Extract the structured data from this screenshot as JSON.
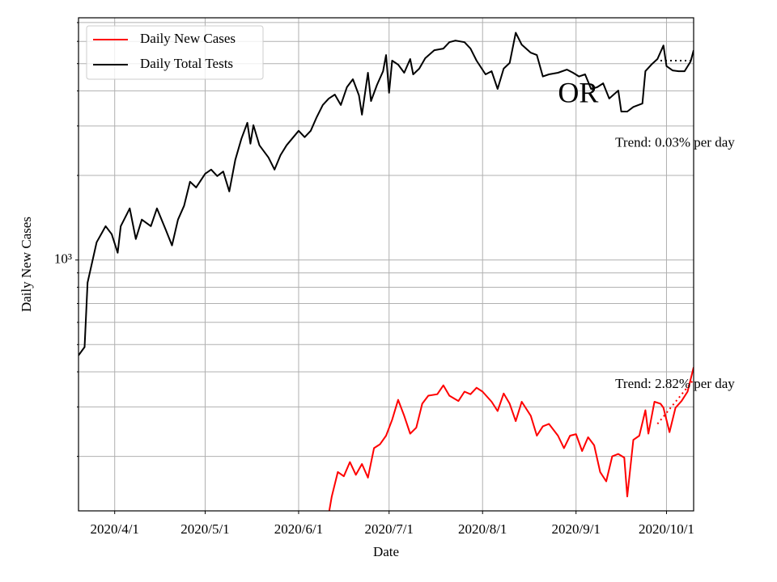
{
  "chart_data": {
    "type": "line",
    "xlabel": "Date",
    "ylabel": "Daily New Cases",
    "log_scale_y": true,
    "grid": true,
    "legend": "upper left",
    "xlim": [
      "2020-03-20",
      "2020-10-10"
    ],
    "xticks": [
      {
        "value": "2020-04-01",
        "label": "2020/4/1"
      },
      {
        "value": "2020-05-01",
        "label": "2020/5/1"
      },
      {
        "value": "2020-06-01",
        "label": "2020/6/1"
      },
      {
        "value": "2020-07-01",
        "label": "2020/7/1"
      },
      {
        "value": "2020-08-01",
        "label": "2020/8/1"
      },
      {
        "value": "2020-09-01",
        "label": "2020/9/1"
      },
      {
        "value": "2020-10-01",
        "label": "2020/10/1"
      }
    ],
    "ylim": [
      128,
      7280
    ],
    "yticks": [
      {
        "value": 1000,
        "label": "10³"
      }
    ],
    "minor_yticks": [
      200,
      300,
      400,
      500,
      600,
      700,
      800,
      900,
      2000,
      3000,
      4000,
      5000,
      6000,
      7000
    ],
    "series": [
      {
        "name": "Daily New Cases",
        "color": "#ff0000",
        "x": [
          "2020-06-11",
          "2020-06-12",
          "2020-06-14",
          "2020-06-16",
          "2020-06-18",
          "2020-06-20",
          "2020-06-22",
          "2020-06-24",
          "2020-06-26",
          "2020-06-28",
          "2020-06-30",
          "2020-07-02",
          "2020-07-04",
          "2020-07-06",
          "2020-07-08",
          "2020-07-10",
          "2020-07-12",
          "2020-07-14",
          "2020-07-17",
          "2020-07-19",
          "2020-07-21",
          "2020-07-24",
          "2020-07-26",
          "2020-07-28",
          "2020-07-30",
          "2020-08-01",
          "2020-08-04",
          "2020-08-06",
          "2020-08-08",
          "2020-08-10",
          "2020-08-12",
          "2020-08-14",
          "2020-08-17",
          "2020-08-19",
          "2020-08-21",
          "2020-08-23",
          "2020-08-26",
          "2020-08-28",
          "2020-08-30",
          "2020-09-01",
          "2020-09-03",
          "2020-09-05",
          "2020-09-07",
          "2020-09-09",
          "2020-09-11",
          "2020-09-13",
          "2020-09-15",
          "2020-09-17",
          "2020-09-18",
          "2020-09-20",
          "2020-09-22",
          "2020-09-24",
          "2020-09-25",
          "2020-09-27",
          "2020-09-29",
          "2020-09-30",
          "2020-10-02",
          "2020-10-04",
          "2020-10-06",
          "2020-10-08",
          "2020-10-10"
        ],
        "values": [
          125,
          144,
          176,
          170,
          191,
          172,
          188,
          168,
          214,
          221,
          237,
          270,
          318,
          279,
          241,
          253,
          308,
          329,
          333,
          358,
          329,
          315,
          340,
          333,
          351,
          340,
          313,
          290,
          335,
          308,
          267,
          313,
          279,
          237,
          256,
          261,
          237,
          214,
          237,
          240,
          209,
          234,
          219,
          176,
          163,
          200,
          204,
          198,
          144,
          229,
          237,
          292,
          241,
          313,
          308,
          298,
          244,
          298,
          315,
          340,
          415
        ]
      },
      {
        "name": "Daily Total Tests",
        "color": "#000000",
        "x": [
          "2020-03-20",
          "2020-03-22",
          "2020-03-23",
          "2020-03-26",
          "2020-03-29",
          "2020-03-31",
          "2020-04-02",
          "2020-04-03",
          "2020-04-06",
          "2020-04-08",
          "2020-04-10",
          "2020-04-13",
          "2020-04-15",
          "2020-04-18",
          "2020-04-20",
          "2020-04-22",
          "2020-04-24",
          "2020-04-26",
          "2020-04-28",
          "2020-05-01",
          "2020-05-03",
          "2020-05-05",
          "2020-05-07",
          "2020-05-09",
          "2020-05-11",
          "2020-05-13",
          "2020-05-15",
          "2020-05-16",
          "2020-05-17",
          "2020-05-19",
          "2020-05-22",
          "2020-05-24",
          "2020-05-26",
          "2020-05-28",
          "2020-06-01",
          "2020-06-03",
          "2020-06-05",
          "2020-06-07",
          "2020-06-09",
          "2020-06-11",
          "2020-06-13",
          "2020-06-15",
          "2020-06-17",
          "2020-06-19",
          "2020-06-21",
          "2020-06-22",
          "2020-06-24",
          "2020-06-25",
          "2020-06-27",
          "2020-06-29",
          "2020-06-30",
          "2020-07-01",
          "2020-07-02",
          "2020-07-04",
          "2020-07-06",
          "2020-07-08",
          "2020-07-09",
          "2020-07-11",
          "2020-07-13",
          "2020-07-16",
          "2020-07-19",
          "2020-07-21",
          "2020-07-23",
          "2020-07-26",
          "2020-07-28",
          "2020-07-30",
          "2020-08-02",
          "2020-08-04",
          "2020-08-06",
          "2020-08-08",
          "2020-08-10",
          "2020-08-12",
          "2020-08-14",
          "2020-08-17",
          "2020-08-19",
          "2020-08-21",
          "2020-08-23",
          "2020-08-26",
          "2020-08-29",
          "2020-08-31",
          "2020-09-02",
          "2020-09-04",
          "2020-09-06",
          "2020-09-08",
          "2020-09-10",
          "2020-09-12",
          "2020-09-15",
          "2020-09-16",
          "2020-09-18",
          "2020-09-20",
          "2020-09-23",
          "2020-09-24",
          "2020-09-26",
          "2020-09-28",
          "2020-09-30",
          "2020-10-01",
          "2020-10-03",
          "2020-10-05",
          "2020-10-07",
          "2020-10-09",
          "2020-10-10"
        ],
        "values": [
          458,
          490,
          831,
          1157,
          1320,
          1236,
          1061,
          1320,
          1527,
          1188,
          1392,
          1320,
          1527,
          1277,
          1127,
          1392,
          1558,
          1900,
          1813,
          2028,
          2098,
          1990,
          2065,
          1755,
          2272,
          2699,
          3080,
          2595,
          3018,
          2561,
          2317,
          2098,
          2362,
          2561,
          2884,
          2737,
          2884,
          3226,
          3563,
          3755,
          3880,
          3563,
          4120,
          4400,
          3855,
          3290,
          4640,
          3680,
          4200,
          4700,
          5364,
          3938,
          5125,
          4961,
          4640,
          5192,
          4580,
          4800,
          5227,
          5580,
          5655,
          5960,
          6040,
          5960,
          5655,
          5125,
          4580,
          4700,
          4065,
          4800,
          5028,
          6440,
          5840,
          5470,
          5364,
          4500,
          4580,
          4640,
          4760,
          4640,
          4500,
          4580,
          4065,
          4120,
          4255,
          3755,
          4010,
          3375,
          3375,
          3506,
          3606,
          4700,
          4961,
          5192,
          5800,
          4900,
          4730,
          4700,
          4700,
          5090,
          5580
        ]
      }
    ],
    "trend_lines": [
      {
        "color": "#000000",
        "x": [
          "2020-09-29",
          "2020-10-10"
        ],
        "values": [
          5125,
          5125
        ]
      },
      {
        "color": "#ff0000",
        "x": [
          "2020-09-28",
          "2020-10-10"
        ],
        "values": [
          261,
          375
        ]
      }
    ],
    "annotations": [
      {
        "text": "Trend: 0.03% per day",
        "x": "2020-09-14",
        "value": 2600
      },
      {
        "text": "Trend: 2.82% per day",
        "x": "2020-09-14",
        "value": 360
      },
      {
        "text": "OR",
        "x": "2020-08-26",
        "value": 3850,
        "big": true
      }
    ]
  }
}
